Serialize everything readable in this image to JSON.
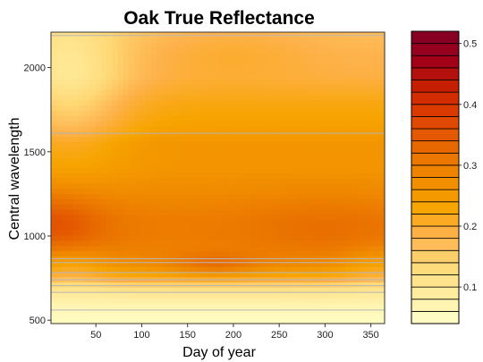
{
  "chart_data": {
    "type": "heatmap",
    "title": "Oak True Reflectance",
    "xlabel": "Day of year",
    "ylabel": "Central wavelength",
    "x_ticks": [
      50,
      100,
      150,
      200,
      250,
      300,
      350
    ],
    "y_ticks": [
      500,
      1000,
      1500,
      2000
    ],
    "xlim": [
      1,
      365
    ],
    "ylim": [
      480,
      2210
    ],
    "z_range": [
      0.04,
      0.52
    ],
    "legend_ticks": [
      0.1,
      0.2,
      0.3,
      0.4,
      0.5
    ],
    "legend_placement": "right",
    "sampled_wavelengths": [
      560,
      665,
      705,
      740,
      783,
      842,
      865,
      1610,
      2190
    ],
    "grid": false,
    "color_scale": [
      "#FFFFCC",
      "#FFEDA0",
      "#FED976",
      "#FEB24C",
      "#F7A400",
      "#F08A00",
      "#E86A00",
      "#E04400",
      "#CC2200",
      "#A00018",
      "#800026"
    ],
    "hotspots": [
      {
        "day": 5,
        "wavelength": 1080,
        "value": 0.35
      },
      {
        "day": 180,
        "wavelength": 830,
        "value": 0.33
      },
      {
        "day": 150,
        "wavelength": 1150,
        "value": 0.29
      },
      {
        "day": 300,
        "wavelength": 1050,
        "value": 0.3
      },
      {
        "day": 180,
        "wavelength": 1550,
        "value": 0.27
      },
      {
        "day": 20,
        "wavelength": 1650,
        "value": 0.17
      },
      {
        "day": 20,
        "wavelength": 2050,
        "value": 0.12
      },
      {
        "day": 200,
        "wavelength": 2100,
        "value": 0.2
      },
      {
        "day": 350,
        "wavelength": 1900,
        "value": 0.21
      },
      {
        "day": 200,
        "wavelength": 520,
        "value": 0.04
      }
    ]
  }
}
